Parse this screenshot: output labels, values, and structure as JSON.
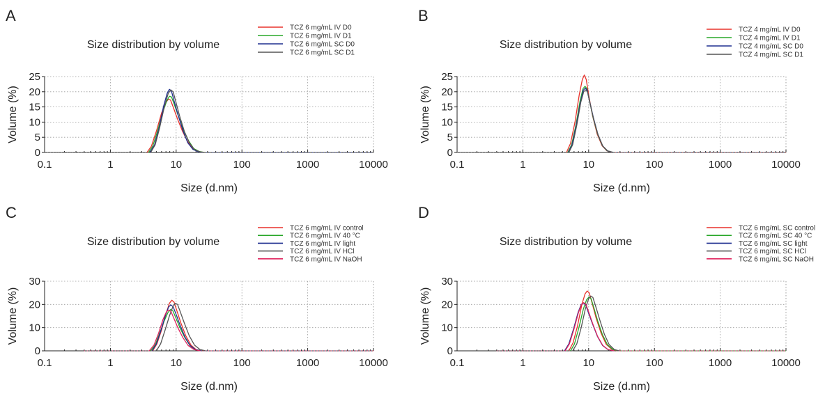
{
  "chart_data": [
    {
      "panel_label": "A",
      "type": "line",
      "title": "Size distribution by volume",
      "xlabel": "Size (d.nm)",
      "ylabel": "Volume (%)",
      "xscale": "log",
      "xlim": [
        0.1,
        10000
      ],
      "ylim": [
        0,
        25
      ],
      "xticks": [
        "0.1",
        "1",
        "10",
        "100",
        "1000",
        "10000"
      ],
      "yticks": [
        "0",
        "5",
        "10",
        "15",
        "20",
        "25"
      ],
      "grid": true,
      "legend_position": "top-right",
      "series": [
        {
          "name": "TCZ 6 mg/mL IV D0",
          "color": "#e8322b",
          "x": [
            3.6,
            4.2,
            5.0,
            6.0,
            7.0,
            7.6,
            8.2,
            9.0,
            10.5,
            12.5,
            15.0,
            18.0,
            22.0,
            27.0
          ],
          "y": [
            0,
            2,
            7,
            13,
            16.5,
            17.5,
            17.3,
            15,
            11,
            7,
            3.5,
            1.2,
            0.3,
            0
          ]
        },
        {
          "name": "TCZ 6 mg/mL IV D1",
          "color": "#2aa82a",
          "x": [
            3.8,
            4.4,
            5.2,
            6.2,
            7.2,
            7.9,
            8.5,
            9.3,
            10.8,
            12.8,
            15.5,
            18.5,
            22.5,
            27.0
          ],
          "y": [
            0,
            2,
            7,
            13,
            17,
            18.5,
            18.3,
            16,
            12,
            7.5,
            3.8,
            1.3,
            0.3,
            0
          ]
        },
        {
          "name": "TCZ 6 mg/mL SC D0",
          "color": "#1f2f8f",
          "x": [
            4.0,
            4.7,
            5.5,
            6.4,
            7.3,
            7.9,
            8.5,
            9.3,
            10.8,
            12.8,
            15.0,
            18.0,
            22.0,
            26.0
          ],
          "y": [
            0,
            2.5,
            8,
            15,
            19.5,
            20.8,
            20.2,
            17,
            12,
            7,
            3.2,
            1,
            0.2,
            0
          ]
        },
        {
          "name": "TCZ 6 mg/mL SC D1",
          "color": "#555555",
          "x": [
            4.1,
            4.8,
            5.6,
            6.6,
            7.6,
            8.3,
            9.0,
            9.8,
            11.3,
            13.3,
            15.8,
            18.8,
            23.0,
            27.0
          ],
          "y": [
            0,
            2.5,
            8,
            15,
            19.5,
            20.6,
            20,
            17,
            12,
            7,
            3.2,
            1,
            0.2,
            0
          ]
        }
      ]
    },
    {
      "panel_label": "B",
      "type": "line",
      "title": "Size distribution by volume",
      "xlabel": "Size (d.nm)",
      "ylabel": "Volume (%)",
      "xscale": "log",
      "xlim": [
        0.1,
        10000
      ],
      "ylim": [
        0,
        25
      ],
      "xticks": [
        "0.1",
        "1",
        "10",
        "100",
        "1000",
        "10000"
      ],
      "yticks": [
        "0",
        "5",
        "10",
        "15",
        "20",
        "25"
      ],
      "grid": true,
      "legend_position": "top-right",
      "series": [
        {
          "name": "TCZ 4 mg/mL IV D0",
          "color": "#e8322b",
          "x": [
            4.6,
            5.3,
            6.2,
            7.2,
            8.0,
            8.6,
            9.2,
            10.0,
            11.5,
            13.5,
            16.0,
            19.0,
            23.0
          ],
          "y": [
            0,
            3,
            10,
            19,
            24,
            25.5,
            24,
            19,
            12,
            6,
            2.2,
            0.5,
            0
          ]
        },
        {
          "name": "TCZ 4 mg/mL IV D1",
          "color": "#2aa82a",
          "x": [
            4.8,
            5.5,
            6.4,
            7.4,
            8.2,
            8.8,
            9.4,
            10.2,
            11.7,
            13.7,
            16.2,
            19.2,
            23.5
          ],
          "y": [
            0,
            2.5,
            9,
            17,
            21,
            21.8,
            21,
            17.5,
            11.5,
            6,
            2.2,
            0.5,
            0
          ]
        },
        {
          "name": "TCZ 4 mg/mL SC D0",
          "color": "#1f2f8f",
          "x": [
            4.9,
            5.6,
            6.5,
            7.5,
            8.3,
            8.9,
            9.5,
            10.3,
            11.8,
            13.8,
            16.3,
            19.3,
            23.5
          ],
          "y": [
            0,
            2.5,
            9,
            16.5,
            20.5,
            21.2,
            20.5,
            17,
            11.5,
            6,
            2.2,
            0.5,
            0
          ]
        },
        {
          "name": "TCZ 4 mg/mL SC D1",
          "color": "#555555",
          "x": [
            5.0,
            5.7,
            6.6,
            7.6,
            8.4,
            9.0,
            9.6,
            10.4,
            11.9,
            13.9,
            16.4,
            19.5,
            24.0
          ],
          "y": [
            0,
            2.5,
            9,
            16.5,
            20,
            20.6,
            20,
            16.5,
            11,
            5.8,
            2.1,
            0.5,
            0
          ]
        }
      ]
    },
    {
      "panel_label": "C",
      "type": "line",
      "title": "Size distribution by volume",
      "xlabel": "Size (d.nm)",
      "ylabel": "Volume (%)",
      "xscale": "log",
      "xlim": [
        0.1,
        10000
      ],
      "ylim": [
        0,
        30
      ],
      "xticks": [
        "0.1",
        "1",
        "10",
        "100",
        "1000",
        "10000"
      ],
      "yticks": [
        "0",
        "10",
        "20",
        "30"
      ],
      "grid": true,
      "legend_position": "top-right",
      "series": [
        {
          "name": "TCZ 6 mg/mL IV control",
          "color": "#e8322b",
          "x": [
            4.4,
            5.1,
            6.0,
            7.0,
            7.9,
            8.6,
            9.3,
            10.2,
            11.8,
            14.0,
            16.8,
            20.0,
            24.5
          ],
          "y": [
            0,
            3,
            9,
            16,
            20.5,
            21.8,
            21,
            17.5,
            12,
            6.5,
            2.5,
            0.6,
            0
          ]
        },
        {
          "name": "TCZ 6 mg/mL IV 40 °C",
          "color": "#2aa82a",
          "x": [
            4.1,
            4.8,
            5.6,
            6.6,
            7.5,
            8.2,
            8.9,
            9.8,
            11.4,
            13.5,
            16.2,
            19.5,
            24.0
          ],
          "y": [
            0,
            2.5,
            7.5,
            13,
            16.5,
            17.8,
            17.3,
            14.5,
            10,
            5.8,
            2.3,
            0.6,
            0
          ]
        },
        {
          "name": "TCZ 6 mg/mL IV light",
          "color": "#1f2f8f",
          "x": [
            4.3,
            5.0,
            5.9,
            6.9,
            7.7,
            8.3,
            9.0,
            9.9,
            11.5,
            13.6,
            16.3,
            19.5,
            24.0
          ],
          "y": [
            0,
            3,
            9,
            15.5,
            19,
            19.8,
            19,
            16,
            11,
            6,
            2.3,
            0.6,
            0
          ]
        },
        {
          "name": "TCZ 6 mg/mL IV HCl",
          "color": "#555555",
          "x": [
            5.0,
            5.8,
            6.8,
            7.9,
            8.9,
            9.7,
            10.5,
            11.5,
            13.3,
            15.8,
            19.0,
            23.0,
            28.0
          ],
          "y": [
            0,
            3,
            9,
            15,
            19,
            20.5,
            20,
            17,
            12,
            6.5,
            2.5,
            0.6,
            0
          ]
        },
        {
          "name": "TCZ 6 mg/mL IV NaOH",
          "color": "#e0245e",
          "x": [
            3.9,
            4.6,
            5.4,
            6.3,
            7.1,
            7.7,
            8.3,
            9.1,
            10.6,
            12.6,
            15.2,
            18.5,
            23.0
          ],
          "y": [
            0,
            2.5,
            7.5,
            13.5,
            16.8,
            17.6,
            17,
            14.5,
            10,
            5.8,
            2.3,
            0.6,
            0
          ]
        }
      ]
    },
    {
      "panel_label": "D",
      "type": "line",
      "title": "Size distribution by volume",
      "xlabel": "Size (d.nm)",
      "ylabel": "Volume (%)",
      "xscale": "log",
      "xlim": [
        0.1,
        10000
      ],
      "ylim": [
        0,
        30
      ],
      "xticks": [
        "0.1",
        "1",
        "10",
        "100",
        "1000",
        "10000"
      ],
      "yticks": [
        "0",
        "10",
        "20",
        "30"
      ],
      "grid": true,
      "legend_position": "top-right",
      "series": [
        {
          "name": "TCZ 6 mg/mL SC control",
          "color": "#e8322b",
          "x": [
            5.0,
            5.8,
            6.8,
            7.9,
            8.8,
            9.5,
            10.2,
            11.2,
            13.0,
            15.5,
            18.5,
            22.5,
            27.0
          ],
          "y": [
            0,
            3.5,
            11,
            20,
            24.5,
            25.8,
            25,
            21,
            14,
            7.5,
            2.8,
            0.7,
            0
          ]
        },
        {
          "name": "TCZ 6 mg/mL SC 40 °C",
          "color": "#2aa82a",
          "x": [
            5.3,
            6.1,
            7.1,
            8.3,
            9.3,
            10.1,
            10.9,
            11.9,
            13.7,
            16.2,
            19.3,
            23.3,
            28.0
          ],
          "y": [
            0,
            3,
            10,
            18,
            22,
            23.2,
            22.5,
            19,
            13,
            7,
            2.6,
            0.6,
            0
          ]
        },
        {
          "name": "TCZ 6 mg/mL SC light",
          "color": "#1f2f8f",
          "x": [
            4.3,
            5.0,
            5.9,
            6.9,
            7.7,
            8.3,
            9.0,
            9.9,
            11.5,
            13.6,
            16.3,
            19.5,
            24.0
          ],
          "y": [
            0,
            3,
            9.5,
            16.5,
            20,
            20.6,
            19.8,
            16.5,
            11.5,
            6.2,
            2.3,
            0.6,
            0
          ]
        },
        {
          "name": "TCZ 6 mg/mL SC HCl",
          "color": "#555555",
          "x": [
            5.7,
            6.6,
            7.7,
            8.9,
            10.0,
            10.8,
            11.6,
            12.7,
            14.7,
            17.3,
            20.5,
            24.5,
            29.0
          ],
          "y": [
            0,
            3,
            10,
            18,
            22.5,
            23.6,
            23,
            19.5,
            13.5,
            7.2,
            2.7,
            0.6,
            0
          ]
        },
        {
          "name": "TCZ 6 mg/mL SC NaOH",
          "color": "#e0245e",
          "x": [
            4.4,
            5.1,
            6.0,
            7.0,
            7.8,
            8.4,
            9.1,
            10.0,
            11.6,
            13.7,
            16.4,
            19.6,
            24.0
          ],
          "y": [
            0,
            3,
            9.5,
            16.5,
            20,
            20.8,
            20,
            16.8,
            11.5,
            6.2,
            2.3,
            0.6,
            0
          ]
        }
      ]
    }
  ]
}
